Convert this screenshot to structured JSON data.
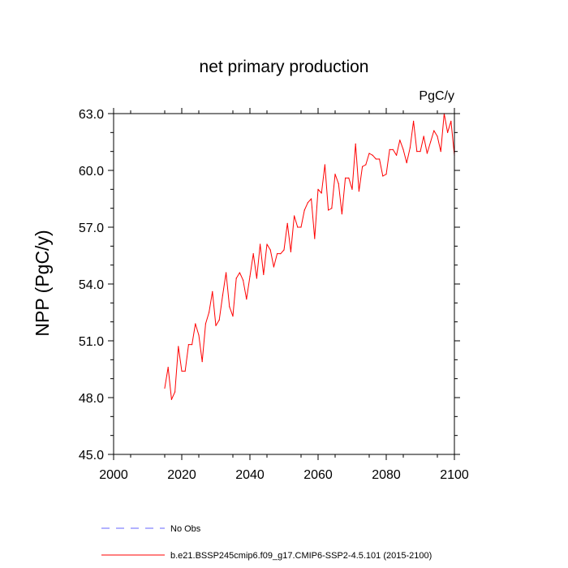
{
  "chart_data": {
    "type": "line",
    "title": "net primary production",
    "units_label": "PgC/y",
    "ylabel": "NPP  (PgC/y)",
    "xlabel": "",
    "xlim": [
      2000,
      2100
    ],
    "ylim": [
      45.0,
      63.0
    ],
    "x_ticks": [
      2000,
      2020,
      2040,
      2060,
      2080,
      2100
    ],
    "x_tick_labels": [
      "2000",
      "2020",
      "2040",
      "2060",
      "2080",
      "2100"
    ],
    "y_ticks": [
      45.0,
      48.0,
      51.0,
      54.0,
      57.0,
      60.0,
      63.0
    ],
    "y_tick_labels": [
      "45.0",
      "48.0",
      "51.0",
      "54.0",
      "57.0",
      "60.0",
      "63.0"
    ],
    "grid": false,
    "legend_position": "bottom",
    "legend": [
      {
        "name": "No Obs",
        "color": "#6666ff",
        "style": "dashed"
      },
      {
        "name": "b.e21.BSSP245cmip6.f09_g17.CMIP6-SSP2-4.5.101 (2015-2100)",
        "color": "#ff0000",
        "style": "solid"
      }
    ],
    "series": [
      {
        "name": "b.e21.BSSP245cmip6.f09_g17.CMIP6-SSP2-4.5.101 (2015-2100)",
        "color": "#ff0000",
        "x": [
          2015,
          2016,
          2017,
          2018,
          2019,
          2020,
          2021,
          2022,
          2023,
          2024,
          2025,
          2026,
          2027,
          2028,
          2029,
          2030,
          2031,
          2032,
          2033,
          2034,
          2035,
          2036,
          2037,
          2038,
          2039,
          2040,
          2041,
          2042,
          2043,
          2044,
          2045,
          2046,
          2047,
          2048,
          2049,
          2050,
          2051,
          2052,
          2053,
          2054,
          2055,
          2056,
          2057,
          2058,
          2059,
          2060,
          2061,
          2062,
          2063,
          2064,
          2065,
          2066,
          2067,
          2068,
          2069,
          2070,
          2071,
          2072,
          2073,
          2074,
          2075,
          2076,
          2077,
          2078,
          2079,
          2080,
          2081,
          2082,
          2083,
          2084,
          2085,
          2086,
          2087,
          2088,
          2089,
          2090,
          2091,
          2092,
          2093,
          2094,
          2095,
          2096,
          2097,
          2098,
          2099,
          2100
        ],
        "values": [
          48.5,
          49.6,
          47.9,
          48.3,
          50.7,
          49.4,
          49.4,
          50.8,
          50.8,
          51.9,
          51.3,
          49.9,
          51.9,
          52.5,
          53.6,
          51.8,
          52.1,
          53.4,
          54.6,
          52.8,
          52.3,
          54.3,
          54.6,
          54.2,
          53.2,
          54.4,
          55.6,
          54.3,
          56.1,
          54.5,
          56.1,
          55.8,
          54.9,
          55.6,
          55.6,
          55.8,
          57.2,
          55.7,
          57.6,
          57.0,
          57.0,
          57.9,
          58.3,
          58.5,
          56.4,
          59.0,
          58.8,
          60.3,
          57.9,
          58.0,
          59.8,
          59.3,
          57.7,
          59.6,
          59.6,
          59.0,
          61.4,
          58.9,
          60.2,
          60.3,
          60.9,
          60.8,
          60.6,
          60.6,
          59.7,
          59.8,
          61.1,
          61.1,
          60.8,
          61.6,
          61.1,
          60.4,
          61.2,
          62.6,
          61.0,
          61.0,
          61.8,
          60.9,
          61.5,
          62.1,
          61.8,
          61.0,
          63.0,
          62.0,
          62.6,
          60.8
        ]
      }
    ]
  }
}
